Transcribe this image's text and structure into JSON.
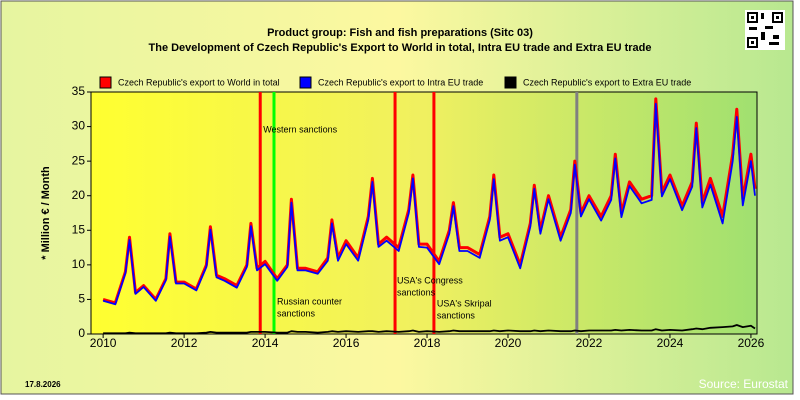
{
  "chart_data": {
    "type": "line",
    "title": "Product group: Fish and fish preparations (Sitc 03)",
    "subtitle": "The Development of Czech Republic's Export to World in total, Intra EU trade and Extra EU trade",
    "y_label": "* Million € / Month",
    "date": "17.8.2026",
    "source": "Source: Eurostat",
    "xlim": [
      2009.7,
      2026.15
    ],
    "xticks": [
      2010,
      2012,
      2014,
      2016,
      2018,
      2020,
      2022,
      2024,
      2026
    ],
    "ylim": [
      0,
      35
    ],
    "yticks": [
      0,
      5,
      10,
      15,
      20,
      25,
      30,
      35
    ],
    "grid": false,
    "legend": "top",
    "x": [
      2010,
      2010.3,
      2010.55,
      2010.65,
      2010.8,
      2011,
      2011.3,
      2011.55,
      2011.65,
      2011.8,
      2012,
      2012.3,
      2012.55,
      2012.65,
      2012.8,
      2013,
      2013.3,
      2013.55,
      2013.65,
      2013.8,
      2014,
      2014.3,
      2014.55,
      2014.65,
      2014.8,
      2015,
      2015.3,
      2015.55,
      2015.65,
      2015.8,
      2016,
      2016.3,
      2016.55,
      2016.65,
      2016.8,
      2017,
      2017.3,
      2017.55,
      2017.65,
      2017.8,
      2018,
      2018.3,
      2018.55,
      2018.65,
      2018.8,
      2019,
      2019.3,
      2019.55,
      2019.65,
      2019.8,
      2020,
      2020.3,
      2020.55,
      2020.65,
      2020.8,
      2021,
      2021.3,
      2021.55,
      2021.65,
      2021.8,
      2022,
      2022.3,
      2022.55,
      2022.65,
      2022.8,
      2023,
      2023.3,
      2023.55,
      2023.65,
      2023.8,
      2024,
      2024.3,
      2024.55,
      2024.65,
      2024.8,
      2025,
      2025.3,
      2025.55,
      2025.65,
      2025.8,
      2026,
      2026.1
    ],
    "series": [
      {
        "name": "Czech Republic's export to World in total",
        "color": "#ff0000",
        "values": [
          5,
          4.5,
          9,
          14,
          6,
          7,
          5,
          8,
          14.5,
          7.5,
          7.5,
          6.5,
          10,
          15.5,
          8.5,
          8,
          7,
          10,
          16,
          9.5,
          10.5,
          8,
          10,
          19.5,
          9.5,
          9.5,
          9,
          11,
          16.5,
          11,
          13.5,
          11,
          17,
          22.5,
          13,
          14,
          12.5,
          18,
          23,
          13,
          13,
          10.5,
          15,
          19,
          12.5,
          12.5,
          11.5,
          17,
          23,
          14,
          14.5,
          10,
          16,
          21.5,
          15,
          20,
          14,
          18,
          25,
          17.5,
          20,
          17,
          20,
          26,
          17.5,
          22,
          19.5,
          20,
          34,
          20.5,
          23,
          18.5,
          22,
          30.5,
          19,
          22.5,
          17,
          26,
          32.5,
          19.5,
          26,
          21
        ]
      },
      {
        "name": "Czech Republic's export to Intra EU trade",
        "color": "#0000ff",
        "values": [
          4.8,
          4.3,
          8.8,
          13.6,
          5.8,
          6.8,
          4.8,
          7.8,
          14.1,
          7.3,
          7.3,
          6.3,
          9.7,
          15.1,
          8.2,
          7.7,
          6.7,
          9.7,
          15.6,
          9.2,
          10.1,
          7.7,
          9.7,
          19,
          9.2,
          9.2,
          8.7,
          10.6,
          16,
          10.6,
          13,
          10.6,
          16.5,
          22,
          12.6,
          13.5,
          12,
          17.5,
          22.5,
          12.6,
          12.5,
          10.1,
          14.5,
          18.5,
          12,
          12,
          11,
          16.5,
          22.4,
          13.5,
          14,
          9.5,
          15.5,
          21,
          14.5,
          19.5,
          13.5,
          17.5,
          24.5,
          17,
          19.5,
          16.4,
          19.4,
          25.4,
          16.9,
          21.4,
          18.9,
          19.4,
          33.3,
          19.9,
          22.4,
          17.9,
          21.3,
          29.8,
          18.3,
          21.6,
          16,
          25,
          31.4,
          18.6,
          25,
          20
        ]
      },
      {
        "name": "Czech Republic's export to Extra EU trade",
        "color": "#000000",
        "values": [
          0.1,
          0.1,
          0.1,
          0.2,
          0.1,
          0.1,
          0.1,
          0.1,
          0.2,
          0.1,
          0.1,
          0.1,
          0.2,
          0.3,
          0.2,
          0.2,
          0.2,
          0.2,
          0.3,
          0.3,
          0.3,
          0.2,
          0.2,
          0.4,
          0.3,
          0.3,
          0.2,
          0.3,
          0.4,
          0.3,
          0.4,
          0.3,
          0.4,
          0.4,
          0.3,
          0.4,
          0.3,
          0.4,
          0.5,
          0.3,
          0.4,
          0.3,
          0.4,
          0.5,
          0.4,
          0.4,
          0.4,
          0.4,
          0.5,
          0.4,
          0.5,
          0.4,
          0.4,
          0.5,
          0.4,
          0.5,
          0.4,
          0.4,
          0.5,
          0.4,
          0.5,
          0.5,
          0.5,
          0.6,
          0.5,
          0.6,
          0.5,
          0.5,
          0.7,
          0.5,
          0.6,
          0.5,
          0.7,
          0.8,
          0.7,
          0.9,
          1,
          1.1,
          1.3,
          1,
          1.2,
          0.8
        ]
      }
    ],
    "events": [
      {
        "x": 2013.88,
        "color": "#ff0000",
        "label_lines": [
          "Western sanctions"
        ]
      },
      {
        "x": 2014.22,
        "color": "#00ff00",
        "label_lines": [
          "Russian counter",
          "sanctions"
        ]
      },
      {
        "x": 2017.21,
        "color": "#ff0000",
        "label_lines": [
          "USA's Congress",
          "sanctions"
        ]
      },
      {
        "x": 2018.17,
        "color": "#ff0000",
        "label_lines": [
          "USA's Skripal",
          "sanctions"
        ]
      },
      {
        "x": 2021.7,
        "color": "#808080"
      }
    ]
  }
}
